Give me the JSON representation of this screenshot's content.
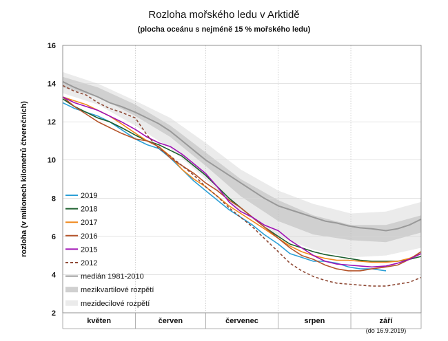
{
  "chart_data": {
    "type": "line",
    "title": "Rozloha mořského ledu v Arktidě",
    "subtitle": "(plocha oceánu s nejméně 15 % mořského ledu)",
    "ylabel": "rozloha (v milionech kilometrů čtverečních)",
    "xlabel": "",
    "ylim": [
      2,
      16
    ],
    "yticks": [
      2,
      4,
      6,
      8,
      10,
      12,
      14,
      16
    ],
    "x_unit": "day of year",
    "xlim": [
      121,
      274
    ],
    "months": [
      "květen",
      "červen",
      "červenec",
      "srpen",
      "září"
    ],
    "note": "(do 16.9.2019)",
    "grid": true,
    "legend_position": "left",
    "bands": [
      {
        "name": "mezidecilové rozpětí",
        "color": "#ebebeb",
        "x": [
          121,
          136,
          152,
          167,
          182,
          197,
          213,
          228,
          244,
          259,
          274
        ],
        "lower": [
          13.5,
          12.9,
          11.8,
          10.6,
          9.0,
          7.3,
          6.0,
          5.3,
          4.9,
          5.0,
          5.4
        ],
        "upper": [
          14.6,
          14.0,
          13.1,
          12.2,
          10.9,
          9.5,
          8.4,
          7.7,
          7.2,
          7.3,
          7.8
        ]
      },
      {
        "name": "mezikvartilové rozpětí",
        "color": "#d0d0d0",
        "x": [
          121,
          136,
          152,
          167,
          182,
          197,
          213,
          228,
          244,
          259,
          274
        ],
        "lower": [
          13.8,
          13.3,
          12.3,
          11.2,
          9.7,
          8.1,
          6.8,
          6.1,
          5.8,
          5.7,
          6.2
        ],
        "upper": [
          14.35,
          13.8,
          12.9,
          11.8,
          10.4,
          9.0,
          7.9,
          7.1,
          6.6,
          6.6,
          7.1
        ]
      }
    ],
    "series": [
      {
        "name": "2019",
        "color": "#2b9fd6",
        "dash": false,
        "x": [
          121,
          126,
          131,
          136,
          141,
          146,
          152,
          157,
          162,
          167,
          172,
          177,
          182,
          187,
          192,
          197,
          202,
          207,
          213,
          218,
          223,
          228,
          233,
          238,
          243,
          248,
          253,
          259
        ],
        "y": [
          13.0,
          12.7,
          12.5,
          12.3,
          12.0,
          11.6,
          11.1,
          10.8,
          10.6,
          10.1,
          9.5,
          8.9,
          8.4,
          7.9,
          7.4,
          7.0,
          6.6,
          6.1,
          5.6,
          5.1,
          4.9,
          4.7,
          4.7,
          4.6,
          4.4,
          4.3,
          4.3,
          4.2
        ]
      },
      {
        "name": "2018",
        "color": "#1c5f2e",
        "dash": false,
        "x": [
          121,
          126,
          131,
          136,
          141,
          146,
          152,
          157,
          162,
          167,
          172,
          177,
          182,
          187,
          192,
          197,
          202,
          207,
          213,
          218,
          223,
          228,
          233,
          238,
          243,
          248,
          253,
          259,
          264,
          269,
          274
        ],
        "y": [
          13.2,
          12.8,
          12.5,
          12.2,
          12.0,
          11.7,
          11.3,
          11.0,
          10.8,
          10.5,
          10.2,
          9.7,
          9.2,
          8.6,
          8.0,
          7.5,
          7.0,
          6.5,
          6.0,
          5.6,
          5.4,
          5.2,
          5.05,
          4.95,
          4.85,
          4.75,
          4.7,
          4.7,
          4.7,
          4.8,
          4.95
        ]
      },
      {
        "name": "2017",
        "color": "#f0891e",
        "dash": false,
        "x": [
          121,
          126,
          131,
          136,
          141,
          146,
          152,
          157,
          162,
          167,
          172,
          177,
          182,
          187,
          192,
          197,
          202,
          207,
          213,
          218,
          223,
          228,
          233,
          238,
          243,
          248,
          253,
          259,
          264,
          269,
          274
        ],
        "y": [
          13.3,
          13.1,
          12.9,
          12.6,
          12.3,
          11.9,
          11.4,
          11.0,
          10.7,
          10.2,
          9.5,
          9.0,
          8.6,
          8.1,
          7.6,
          7.2,
          6.8,
          6.4,
          5.9,
          5.5,
          5.2,
          5.0,
          4.85,
          4.75,
          4.75,
          4.7,
          4.65,
          4.65,
          4.7,
          4.85,
          5.1
        ]
      },
      {
        "name": "2016",
        "color": "#b5542a",
        "dash": false,
        "x": [
          121,
          126,
          131,
          136,
          141,
          146,
          152,
          157,
          162,
          167,
          172,
          177,
          182,
          187,
          192,
          197,
          202,
          207,
          213,
          218,
          223,
          228,
          233,
          238,
          243,
          248,
          253,
          259,
          264,
          269,
          274
        ],
        "y": [
          13.3,
          12.8,
          12.4,
          12.0,
          11.7,
          11.4,
          11.1,
          11.0,
          10.7,
          10.1,
          9.7,
          9.3,
          8.8,
          8.4,
          7.9,
          7.5,
          7.0,
          6.5,
          5.9,
          5.4,
          5.0,
          4.8,
          4.5,
          4.3,
          4.2,
          4.2,
          4.3,
          4.4,
          4.5,
          4.8,
          5.2
        ]
      },
      {
        "name": "2015",
        "color": "#a012b5",
        "dash": false,
        "x": [
          121,
          126,
          131,
          136,
          141,
          146,
          152,
          157,
          162,
          167,
          172,
          177,
          182,
          187,
          192,
          197,
          202,
          207,
          213,
          218,
          223,
          228,
          233,
          238,
          243,
          248,
          253,
          259,
          264,
          269,
          274
        ],
        "y": [
          13.3,
          13.0,
          12.8,
          12.6,
          12.3,
          12.0,
          11.6,
          11.2,
          10.9,
          10.7,
          10.3,
          9.8,
          9.3,
          8.6,
          7.8,
          7.3,
          7.0,
          6.6,
          6.3,
          5.8,
          5.4,
          5.0,
          4.7,
          4.55,
          4.5,
          4.45,
          4.4,
          4.45,
          4.6,
          4.8,
          5.1
        ]
      },
      {
        "name": "2012",
        "color": "#8f4a36",
        "dash": true,
        "x": [
          121,
          126,
          131,
          136,
          141,
          146,
          152,
          157,
          162,
          167,
          172,
          177,
          182,
          187,
          192,
          197,
          202,
          207,
          213,
          218,
          223,
          228,
          233,
          238,
          243,
          248,
          253,
          259,
          264,
          269,
          274
        ],
        "y": [
          13.9,
          13.6,
          13.4,
          13.0,
          12.7,
          12.5,
          12.2,
          11.3,
          10.6,
          10.2,
          9.7,
          9.2,
          8.6,
          8.1,
          7.5,
          7.0,
          6.5,
          5.9,
          5.2,
          4.6,
          4.2,
          3.9,
          3.7,
          3.55,
          3.5,
          3.45,
          3.4,
          3.4,
          3.5,
          3.6,
          3.85
        ]
      },
      {
        "name": "medián 1981-2010",
        "color": "#999999",
        "dash": false,
        "width": 2,
        "x": [
          121,
          126,
          131,
          136,
          141,
          146,
          152,
          157,
          162,
          167,
          172,
          177,
          182,
          187,
          192,
          197,
          202,
          207,
          213,
          218,
          223,
          228,
          233,
          238,
          243,
          248,
          253,
          259,
          264,
          269,
          274
        ],
        "y": [
          14.1,
          13.8,
          13.55,
          13.3,
          13.0,
          12.8,
          12.5,
          12.2,
          11.9,
          11.5,
          11.0,
          10.5,
          10.0,
          9.6,
          9.2,
          8.8,
          8.4,
          8.0,
          7.6,
          7.4,
          7.2,
          7.0,
          6.8,
          6.7,
          6.55,
          6.45,
          6.4,
          6.3,
          6.4,
          6.6,
          6.9
        ]
      }
    ],
    "legend": [
      {
        "label": "2019",
        "type": "line",
        "color": "#2b9fd6"
      },
      {
        "label": "2018",
        "type": "line",
        "color": "#1c5f2e"
      },
      {
        "label": "2017",
        "type": "line",
        "color": "#f0891e"
      },
      {
        "label": "2016",
        "type": "line",
        "color": "#b5542a"
      },
      {
        "label": "2015",
        "type": "line",
        "color": "#a012b5"
      },
      {
        "label": "2012",
        "type": "dashed",
        "color": "#8f4a36"
      },
      {
        "label": "medián 1981-2010",
        "type": "line",
        "color": "#999999"
      },
      {
        "label": "mezikvartilové rozpětí",
        "type": "band",
        "color": "#d0d0d0"
      },
      {
        "label": "mezidecilové rozpětí",
        "type": "band",
        "color": "#ebebeb"
      }
    ]
  }
}
